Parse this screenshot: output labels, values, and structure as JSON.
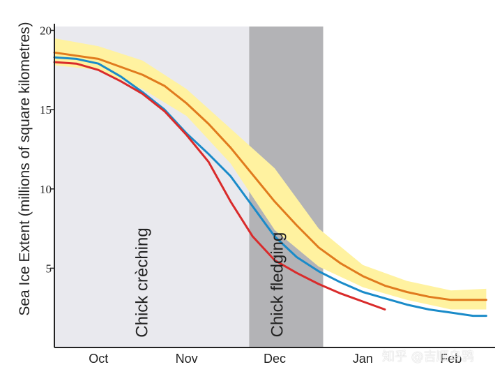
{
  "chart_data": {
    "type": "line",
    "title": "",
    "ylabel": "Sea Ice Extent (millions of square kilometres)",
    "xlabel": "",
    "ylim": [
      0,
      20
    ],
    "yticks": [
      5,
      10,
      15,
      20
    ],
    "x_categories": [
      "Oct",
      "Nov",
      "Dec",
      "Jan",
      "Feb"
    ],
    "x_range": [
      0,
      5
    ],
    "phases": [
      {
        "label": "Chick crèching",
        "x_start": 0,
        "x_end": 2.21,
        "color": "#e9e9ee"
      },
      {
        "label": "Chick fledging",
        "x_start": 2.21,
        "x_end": 3.05,
        "color": "#b3b3b6"
      }
    ],
    "band": {
      "color": "#fff2a0",
      "x": [
        0,
        0.5,
        1,
        1.5,
        2,
        2.5,
        3,
        3.5,
        4,
        4.5,
        4.9
      ],
      "upper": [
        19.5,
        19.0,
        18.1,
        16.3,
        13.8,
        11.3,
        7.5,
        5.2,
        4.2,
        3.6,
        3.7
      ],
      "lower": [
        17.8,
        17.5,
        16.3,
        14.6,
        11.6,
        7.4,
        5.1,
        3.8,
        3.0,
        2.4,
        2.4
      ]
    },
    "series": [
      {
        "color": "#e07b1e",
        "x": [
          0,
          0.5,
          1,
          1.25,
          1.5,
          1.75,
          2,
          2.25,
          2.5,
          2.75,
          3,
          3.25,
          3.5,
          3.75,
          4,
          4.25,
          4.5,
          4.75,
          4.9
        ],
        "y": [
          18.6,
          18.2,
          17.2,
          16.5,
          15.4,
          14.1,
          12.6,
          10.9,
          9.2,
          7.7,
          6.3,
          5.3,
          4.5,
          3.9,
          3.5,
          3.2,
          3.0,
          3.0,
          3.0
        ]
      },
      {
        "color": "#1a8bc9",
        "x": [
          0,
          0.25,
          0.5,
          0.75,
          1,
          1.25,
          1.5,
          1.75,
          2,
          2.25,
          2.5,
          2.75,
          3,
          3.25,
          3.5,
          3.75,
          4,
          4.25,
          4.5,
          4.75,
          4.9
        ],
        "y": [
          18.3,
          18.2,
          17.9,
          17.1,
          16.1,
          15.0,
          13.5,
          12.2,
          10.8,
          8.9,
          7.0,
          5.7,
          4.8,
          4.1,
          3.5,
          3.1,
          2.7,
          2.4,
          2.2,
          2.0,
          2.0
        ]
      },
      {
        "color": "#d92b2b",
        "x": [
          0,
          0.25,
          0.5,
          0.75,
          1,
          1.25,
          1.5,
          1.75,
          2,
          2.25,
          2.5,
          2.75,
          3,
          3.25,
          3.5,
          3.75
        ],
        "y": [
          18.0,
          17.9,
          17.5,
          16.8,
          16.0,
          14.9,
          13.4,
          11.7,
          9.2,
          7.0,
          5.5,
          4.7,
          4.0,
          3.4,
          2.9,
          2.4
        ]
      }
    ]
  },
  "watermark": "知乎 @吉顺乌鸦"
}
